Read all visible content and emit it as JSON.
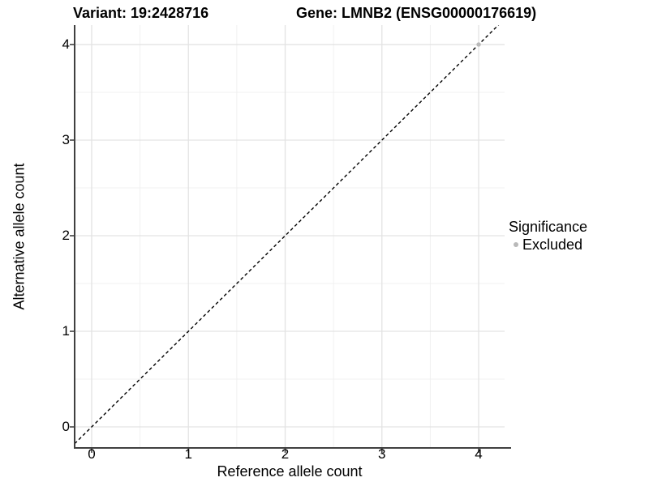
{
  "chart_data": {
    "type": "scatter",
    "titles": {
      "variant": "Variant: 19:2428716",
      "gene": "Gene: LMNB2 (ENSG00000176619)"
    },
    "xlabel": "Reference allele count",
    "ylabel": "Alternative allele count",
    "xlim": [
      -0.176,
      4.268
    ],
    "ylim": [
      -0.22,
      4.203
    ],
    "x_ticks": [
      0,
      1,
      2,
      3,
      4
    ],
    "y_ticks": [
      0,
      1,
      2,
      3,
      4
    ],
    "x_minor_ticks": [
      0.5,
      1.5,
      2.5,
      3.5
    ],
    "y_minor_ticks": [
      0.5,
      1.5,
      2.5,
      3.5
    ],
    "grid": {
      "visible": true,
      "major_color": "#e3e3e3",
      "minor_color": "#f0f0f0"
    },
    "axis": {
      "line_color": "#404040",
      "tick_color": "#404040",
      "tick_length": 5
    },
    "identity_line": {
      "type": "abline",
      "slope": 1,
      "intercept": 0,
      "style": "dashed",
      "color": "#000000"
    },
    "series": [
      {
        "name": "Excluded",
        "color": "#b9b9b9",
        "point_radius": 2.7,
        "points": [
          {
            "x": 4,
            "y": 4
          }
        ]
      }
    ],
    "legend": {
      "title": "Significance",
      "position": "right",
      "items": [
        {
          "label": "Excluded",
          "color": "#b9b9b9"
        }
      ]
    }
  }
}
